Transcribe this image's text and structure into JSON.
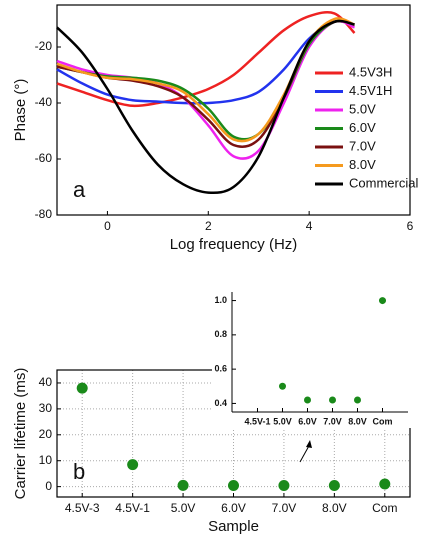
{
  "chart_data": [
    {
      "type": "line",
      "xlabel": "Log frequency (Hz)",
      "ylabel": "Phase (°)",
      "annotation": "a",
      "xlim": [
        -1,
        6
      ],
      "xticks": [
        0,
        2,
        4,
        6
      ],
      "ylim": [
        -80,
        -5
      ],
      "yticks": [
        -20,
        -40,
        -60,
        -80
      ],
      "legend": "right",
      "x": [
        -1,
        -0.5,
        0,
        0.5,
        1,
        1.5,
        2,
        2.5,
        3,
        3.5,
        4,
        4.5,
        4.9
      ],
      "series": [
        {
          "name": "4.5V3H",
          "color": "#ee2222",
          "values": [
            -33,
            -36,
            -39,
            -41,
            -40,
            -38,
            -35,
            -30,
            -22,
            -14,
            -9,
            -8,
            -15
          ]
        },
        {
          "name": "4.5V1H",
          "color": "#2233ee",
          "values": [
            -28,
            -33,
            -37,
            -39,
            -39.5,
            -40,
            -40,
            -39,
            -36,
            -28,
            -17,
            -11,
            -12
          ]
        },
        {
          "name": "5.0V",
          "color": "#ee22ee",
          "values": [
            -25,
            -28,
            -30,
            -31,
            -33,
            -38,
            -48,
            -59,
            -57,
            -40,
            -20,
            -11,
            -13
          ]
        },
        {
          "name": "6.0V",
          "color": "#1a8a1a",
          "values": [
            -27,
            -29,
            -30.5,
            -31,
            -32,
            -35,
            -42,
            -52,
            -51,
            -38,
            -19,
            -11,
            -12
          ]
        },
        {
          "name": "7.0V",
          "color": "#7a1010",
          "values": [
            -27,
            -29,
            -31,
            -32,
            -34,
            -38,
            -46,
            -55,
            -53,
            -38,
            -18,
            -11,
            -12
          ]
        },
        {
          "name": "8.0V",
          "color": "#f59a1e",
          "values": [
            -26,
            -29,
            -31,
            -31.5,
            -33,
            -36,
            -44,
            -53,
            -51,
            -37,
            -18,
            -10,
            -12
          ]
        },
        {
          "name": "Commercial",
          "color": "#000000",
          "values": [
            -13,
            -22,
            -35,
            -50,
            -62,
            -69,
            -72,
            -70,
            -59,
            -38,
            -18,
            -11,
            -12
          ]
        }
      ]
    },
    {
      "type": "scatter",
      "xlabel": "Sample",
      "ylabel": "Carrier lifetime (ms)",
      "annotation": "b",
      "categories": [
        "4.5V-3",
        "4.5V-1",
        "5.0V",
        "6.0V",
        "7.0V",
        "8.0V",
        "Com"
      ],
      "values": [
        38,
        8.5,
        0.5,
        0.42,
        0.42,
        0.42,
        1.0
      ],
      "color": "#1a8a1a",
      "ylim": [
        -4,
        45
      ],
      "yticks": [
        0,
        10,
        20,
        30,
        40
      ],
      "grid": true
    },
    {
      "type": "scatter",
      "categories": [
        "4.5V-1",
        "5.0V",
        "6.0V",
        "7.0V",
        "8.0V",
        "Com"
      ],
      "values": [
        null,
        0.5,
        0.42,
        0.42,
        0.42,
        1.0
      ],
      "color": "#1a8a1a",
      "ylim": [
        0.35,
        1.05
      ],
      "yticks": [
        0.4,
        0.6,
        0.8,
        {
          "value": 1,
          "label": "1.0"
        }
      ]
    }
  ]
}
